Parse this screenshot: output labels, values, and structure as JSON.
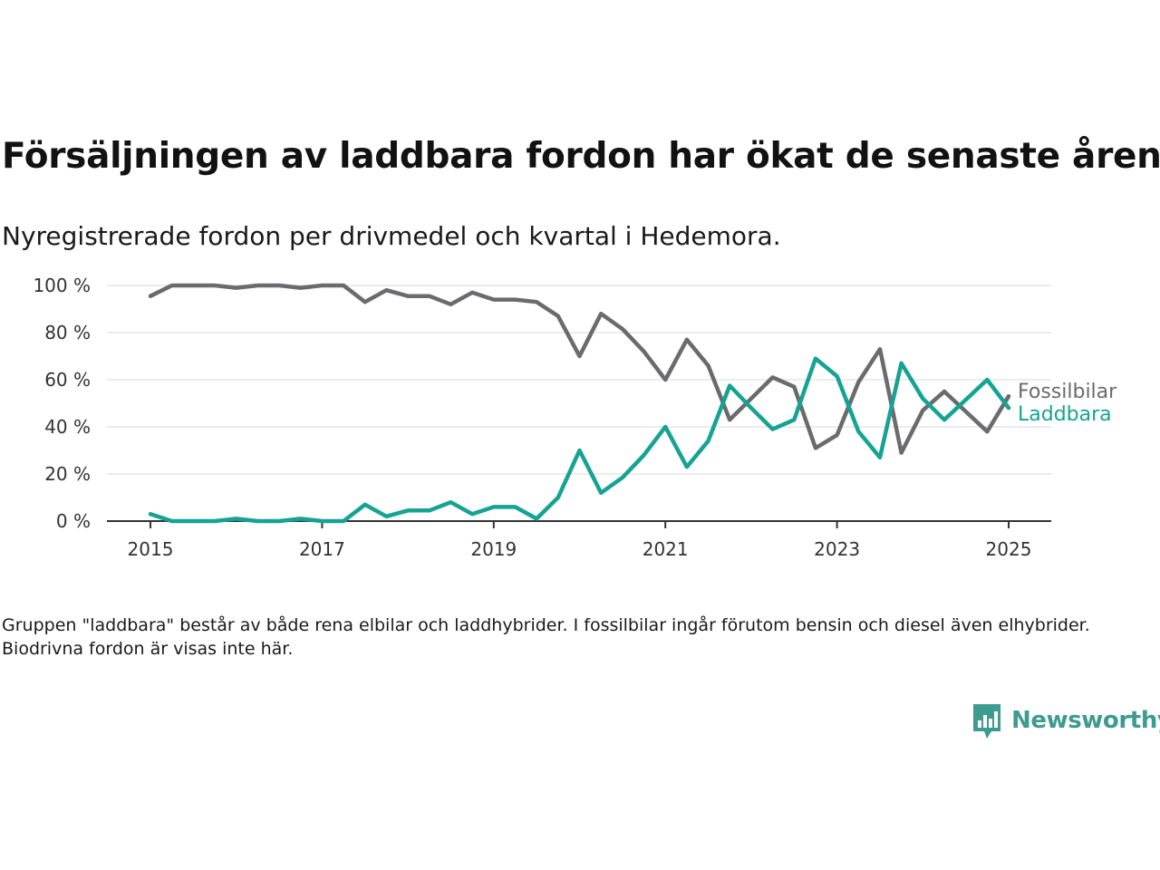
{
  "title": "Försäljningen av laddbara fordon har ökat de senaste åren",
  "subtitle": "Nyregistrerade fordon per drivmedel och kvartal i Hedemora.",
  "note": "Gruppen \"laddbara\" består av både rena elbilar och laddhybrider. I fossilbilar ingår förutom bensin och diesel även elhybrider. Biodrivna fordon är visas inte här.",
  "brand": {
    "name": "Newsworthy",
    "icon": "newsworthy-logo-icon",
    "color": "#3d9b8f"
  },
  "chart_data": {
    "type": "line",
    "x_ticks": [
      "2015",
      "2017",
      "2019",
      "2021",
      "2023",
      "2025"
    ],
    "y_ticks": [
      "0 %",
      "20 %",
      "40 %",
      "60 %",
      "80 %",
      "100 %"
    ],
    "ylim": [
      0,
      100
    ],
    "xlim": [
      2014.5,
      2025.5
    ],
    "grid": "horizontal",
    "x": [
      2015.0,
      2015.25,
      2015.5,
      2015.75,
      2016.0,
      2016.25,
      2016.5,
      2016.75,
      2017.0,
      2017.25,
      2017.5,
      2017.75,
      2018.0,
      2018.25,
      2018.5,
      2018.75,
      2019.0,
      2019.25,
      2019.5,
      2019.75,
      2020.0,
      2020.25,
      2020.5,
      2020.75,
      2021.0,
      2021.25,
      2021.5,
      2021.75,
      2022.0,
      2022.25,
      2022.5,
      2022.75,
      2023.0,
      2023.25,
      2023.5,
      2023.75,
      2024.0,
      2024.25,
      2024.5,
      2024.75,
      2025.0
    ],
    "series": [
      {
        "name": "Fossilbilar",
        "color": "#6b6b6e",
        "values": [
          95.5,
          100,
          100,
          100,
          99,
          100,
          100,
          99,
          100,
          100,
          93,
          98,
          95.5,
          95.5,
          92,
          97,
          94,
          94,
          93,
          87,
          70,
          88,
          81.5,
          72,
          60,
          77,
          66,
          43,
          52,
          61,
          57,
          31,
          36.5,
          59,
          73,
          29,
          47,
          55,
          46.5,
          38,
          53
        ]
      },
      {
        "name": "Laddbara",
        "color": "#16a394",
        "values": [
          3,
          0,
          0,
          0,
          1,
          0,
          0,
          1,
          0,
          0,
          7,
          2,
          4.5,
          4.5,
          8,
          3,
          6,
          6,
          1,
          10,
          30,
          12,
          18.5,
          28,
          40,
          23,
          34,
          57.5,
          48,
          39,
          43,
          69,
          61.5,
          38,
          27,
          67,
          52,
          43,
          51.5,
          60,
          48
        ]
      }
    ]
  }
}
